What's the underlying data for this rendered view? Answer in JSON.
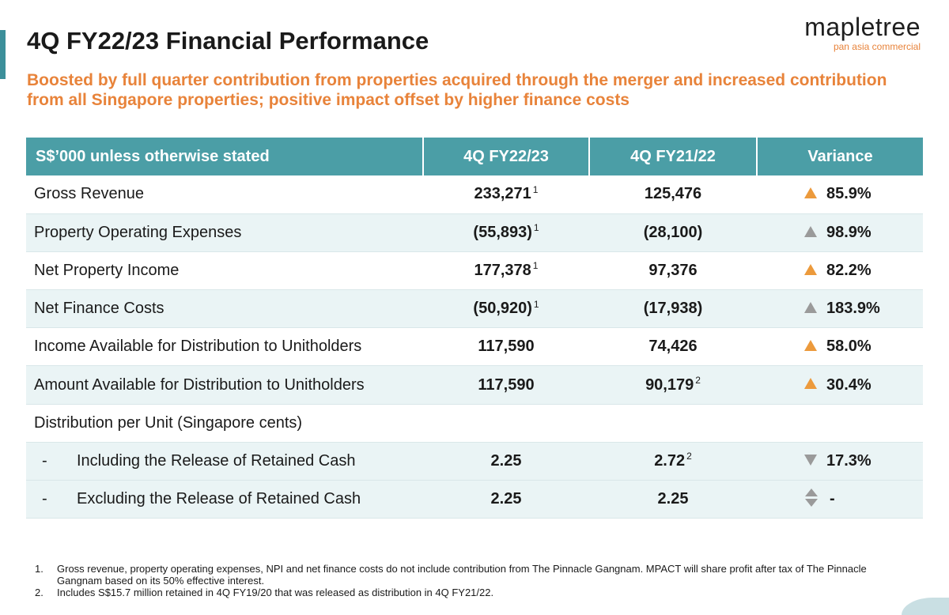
{
  "header": {
    "title": "4Q FY22/23 Financial Performance",
    "subtitle": "Boosted by full quarter contribution from properties acquired through the merger and increased contribution from all Singapore properties; positive impact offset by higher finance costs",
    "logo_word": "mapletree",
    "logo_tagline": "pan asia commercial",
    "accent_color": "#3c8f9a",
    "subtitle_color": "#e8833a"
  },
  "table": {
    "header_color": "#4b9ea6",
    "columns": [
      "S$’000 unless otherwise stated",
      "4Q FY22/23",
      "4Q FY21/22",
      "Variance"
    ],
    "rows": [
      {
        "label": "Gross Revenue",
        "current": "233,271",
        "current_note": "1",
        "prior": "125,476",
        "prior_note": "",
        "variance": "85.9%",
        "variance_icon": "up-triangle-orange-icon"
      },
      {
        "label": "Property Operating Expenses",
        "current": "(55,893)",
        "current_note": "1",
        "prior": "(28,100)",
        "prior_note": "",
        "variance": "98.9%",
        "variance_icon": "up-triangle-grey-icon"
      },
      {
        "label": "Net Property Income",
        "current": "177,378",
        "current_note": "1",
        "prior": "97,376",
        "prior_note": "",
        "variance": "82.2%",
        "variance_icon": "up-triangle-orange-icon"
      },
      {
        "label": "Net Finance Costs",
        "current": "(50,920)",
        "current_note": "1",
        "prior": "(17,938)",
        "prior_note": "",
        "variance": "183.9%",
        "variance_icon": "up-triangle-grey-icon"
      },
      {
        "label": "Income Available for Distribution to Unitholders",
        "current": "117,590",
        "current_note": "",
        "prior": "74,426",
        "prior_note": "",
        "variance": "58.0%",
        "variance_icon": "up-triangle-orange-icon"
      },
      {
        "label": "Amount Available for Distribution to Unitholders",
        "current": "117,590",
        "current_note": "",
        "prior": "90,179",
        "prior_note": "2",
        "variance": "30.4%",
        "variance_icon": "up-triangle-orange-icon"
      }
    ],
    "dpu_heading": "Distribution per Unit (Singapore cents)",
    "dpu_rows": [
      {
        "dash": "-",
        "label": "Including the Release of Retained Cash",
        "current": "2.25",
        "prior": "2.72",
        "prior_note": "2",
        "variance": "17.3%",
        "variance_icon": "down-triangle-grey-icon"
      },
      {
        "dash": "-",
        "label": "Excluding the Release of Retained Cash",
        "current": "2.25",
        "prior": "2.25",
        "prior_note": "",
        "variance": "-",
        "variance_icon": "up-down-arrows-icon"
      }
    ]
  },
  "footnotes": [
    {
      "num": "1.",
      "text": "Gross revenue, property operating expenses, NPI and net finance costs do not include contribution from The Pinnacle Gangnam. MPACT will share profit after tax of The Pinnacle Gangnam based on its 50% effective interest."
    },
    {
      "num": "2.",
      "text": "Includes S$15.7 million retained in 4Q FY19/20 that was released as distribution in 4Q FY21/22."
    }
  ]
}
